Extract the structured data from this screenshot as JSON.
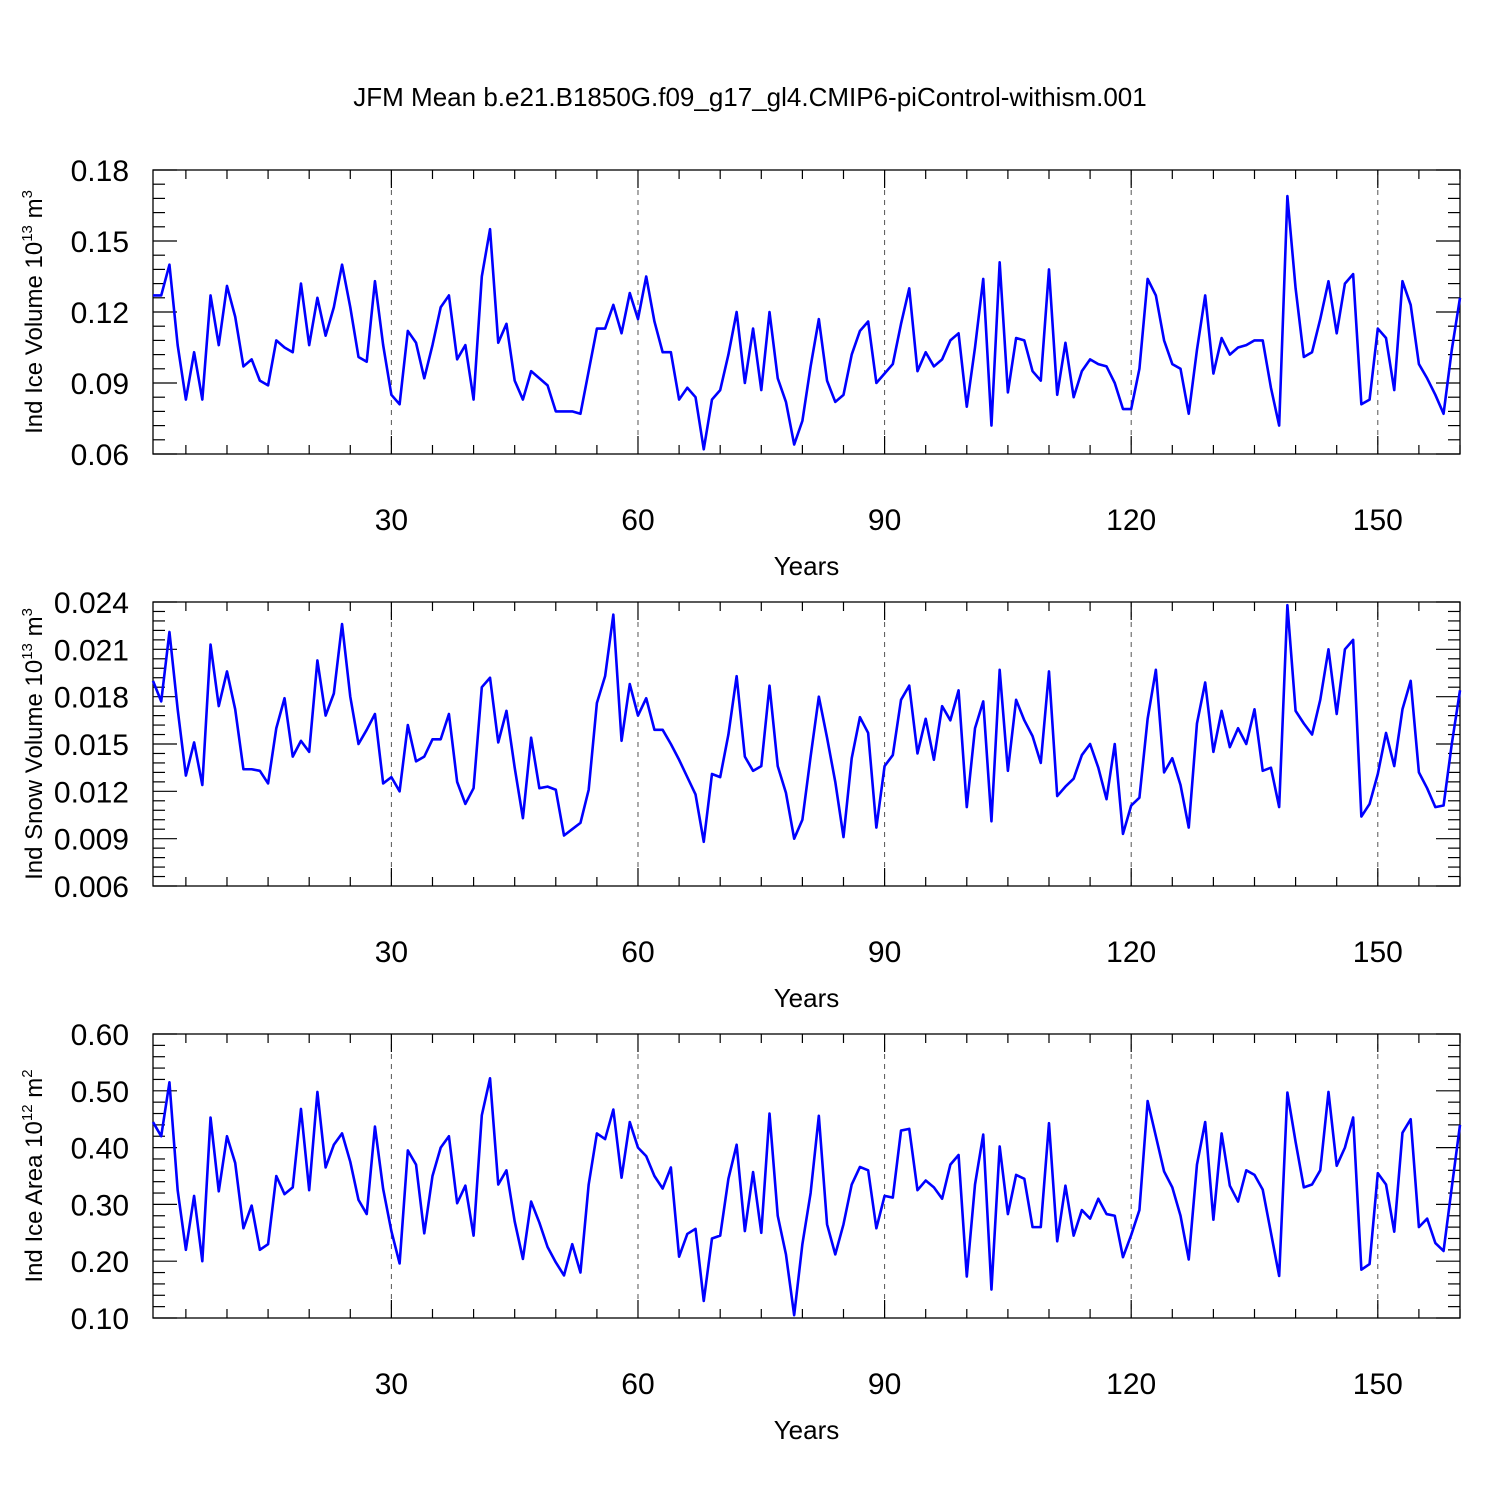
{
  "chart_data": {
    "type": "line",
    "title": "JFM Mean b.e21.B1850G.f09_g17_gl4.CMIP6-piControl-withism.001",
    "series_color": "#0000ff",
    "panels": [
      {
        "id": "ice-volume",
        "ylabel_prefix": "Ind Ice Volume 10",
        "ylabel_exp": "13",
        "ylabel_unit": " m",
        "ylabel_unit_exp": "3",
        "xlabel": "Years",
        "xlim": [
          1,
          160
        ],
        "ylim": [
          0.06,
          0.18
        ],
        "xticks": [
          "30",
          "60",
          "90",
          "120",
          "150"
        ],
        "yticks": [
          "0.06",
          "0.09",
          "0.12",
          "0.15",
          "0.18"
        ],
        "x_start": 1,
        "values": [
          0.127,
          0.127,
          0.14,
          0.106,
          0.083,
          0.103,
          0.083,
          0.127,
          0.106,
          0.131,
          0.118,
          0.097,
          0.1,
          0.091,
          0.089,
          0.108,
          0.105,
          0.103,
          0.132,
          0.106,
          0.126,
          0.11,
          0.122,
          0.14,
          0.122,
          0.101,
          0.099,
          0.133,
          0.106,
          0.085,
          0.081,
          0.112,
          0.107,
          0.092,
          0.106,
          0.122,
          0.127,
          0.1,
          0.106,
          0.083,
          0.135,
          0.155,
          0.107,
          0.115,
          0.091,
          0.083,
          0.095,
          0.092,
          0.089,
          0.078,
          0.078,
          0.078,
          0.077,
          0.095,
          0.113,
          0.113,
          0.123,
          0.111,
          0.128,
          0.117,
          0.135,
          0.116,
          0.103,
          0.103,
          0.083,
          0.088,
          0.084,
          0.062,
          0.083,
          0.087,
          0.102,
          0.12,
          0.09,
          0.113,
          0.087,
          0.12,
          0.092,
          0.082,
          0.064,
          0.074,
          0.097,
          0.117,
          0.091,
          0.082,
          0.085,
          0.102,
          0.112,
          0.116,
          0.09,
          0.094,
          0.098,
          0.115,
          0.13,
          0.095,
          0.103,
          0.097,
          0.1,
          0.108,
          0.111,
          0.08,
          0.105,
          0.134,
          0.072,
          0.141,
          0.086,
          0.109,
          0.108,
          0.095,
          0.091,
          0.138,
          0.085,
          0.107,
          0.084,
          0.095,
          0.1,
          0.098,
          0.097,
          0.09,
          0.079,
          0.079,
          0.096,
          0.134,
          0.127,
          0.108,
          0.098,
          0.096,
          0.077,
          0.104,
          0.127,
          0.094,
          0.109,
          0.102,
          0.105,
          0.106,
          0.108,
          0.108,
          0.088,
          0.072,
          0.169,
          0.13,
          0.101,
          0.103,
          0.117,
          0.133,
          0.111,
          0.132,
          0.136,
          0.081,
          0.083,
          0.113,
          0.109,
          0.087,
          0.133,
          0.123,
          0.098,
          0.092,
          0.085,
          0.077,
          0.104,
          0.126
        ]
      },
      {
        "id": "snow-volume",
        "ylabel_prefix": "Ind Snow Volume 10",
        "ylabel_exp": "13",
        "ylabel_unit": " m",
        "ylabel_unit_exp": "3",
        "xlabel": "Years",
        "xlim": [
          1,
          160
        ],
        "ylim": [
          0.006,
          0.024
        ],
        "xticks": [
          "30",
          "60",
          "90",
          "120",
          "150"
        ],
        "yticks": [
          "0.006",
          "0.009",
          "0.012",
          "0.015",
          "0.018",
          "0.021",
          "0.024"
        ],
        "x_start": 1,
        "values": [
          0.019,
          0.0177,
          0.0221,
          0.0172,
          0.013,
          0.0151,
          0.0124,
          0.0213,
          0.0174,
          0.0196,
          0.0172,
          0.0134,
          0.0134,
          0.0133,
          0.0125,
          0.016,
          0.0179,
          0.0142,
          0.0152,
          0.0145,
          0.0203,
          0.0168,
          0.0182,
          0.0226,
          0.018,
          0.015,
          0.0159,
          0.0169,
          0.0125,
          0.0129,
          0.012,
          0.0162,
          0.0139,
          0.0142,
          0.0153,
          0.0153,
          0.0169,
          0.0126,
          0.0112,
          0.0122,
          0.0186,
          0.0192,
          0.0151,
          0.0171,
          0.0135,
          0.0103,
          0.0154,
          0.0122,
          0.0123,
          0.0121,
          0.0092,
          0.0096,
          0.01,
          0.0121,
          0.0176,
          0.0193,
          0.0232,
          0.0152,
          0.0188,
          0.0168,
          0.0179,
          0.0159,
          0.0159,
          0.015,
          0.014,
          0.0129,
          0.0118,
          0.0088,
          0.0131,
          0.0129,
          0.0156,
          0.0193,
          0.0142,
          0.0133,
          0.0136,
          0.0187,
          0.0136,
          0.0119,
          0.009,
          0.0102,
          0.0142,
          0.018,
          0.0154,
          0.0126,
          0.0091,
          0.0141,
          0.0167,
          0.0157,
          0.0097,
          0.0136,
          0.0143,
          0.0178,
          0.0187,
          0.0144,
          0.0166,
          0.014,
          0.0174,
          0.0165,
          0.0184,
          0.011,
          0.016,
          0.0177,
          0.0101,
          0.0197,
          0.0133,
          0.0178,
          0.0165,
          0.0155,
          0.0138,
          0.0196,
          0.0117,
          0.0123,
          0.0128,
          0.0143,
          0.015,
          0.0135,
          0.0115,
          0.015,
          0.0093,
          0.0111,
          0.0116,
          0.0166,
          0.0197,
          0.0132,
          0.0141,
          0.0124,
          0.0097,
          0.0163,
          0.0189,
          0.0145,
          0.0171,
          0.0148,
          0.016,
          0.015,
          0.0172,
          0.0133,
          0.0135,
          0.011,
          0.0238,
          0.0171,
          0.0163,
          0.0156,
          0.0178,
          0.021,
          0.0169,
          0.021,
          0.0216,
          0.0104,
          0.0112,
          0.0131,
          0.0157,
          0.0136,
          0.0172,
          0.019,
          0.0132,
          0.0122,
          0.011,
          0.0111,
          0.015,
          0.0184
        ]
      },
      {
        "id": "ice-area",
        "ylabel_prefix": "Ind Ice Area 10",
        "ylabel_exp": "12",
        "ylabel_unit": " m",
        "ylabel_unit_exp": "2",
        "xlabel": "Years",
        "xlim": [
          1,
          160
        ],
        "ylim": [
          0.1,
          0.6
        ],
        "xticks": [
          "30",
          "60",
          "90",
          "120",
          "150"
        ],
        "yticks": [
          "0.10",
          "0.20",
          "0.30",
          "0.40",
          "0.50",
          "0.60"
        ],
        "x_start": 1,
        "values": [
          0.445,
          0.42,
          0.515,
          0.325,
          0.22,
          0.315,
          0.2,
          0.453,
          0.323,
          0.42,
          0.373,
          0.258,
          0.298,
          0.22,
          0.23,
          0.35,
          0.318,
          0.33,
          0.468,
          0.325,
          0.498,
          0.365,
          0.405,
          0.425,
          0.375,
          0.308,
          0.283,
          0.437,
          0.327,
          0.253,
          0.196,
          0.395,
          0.37,
          0.249,
          0.35,
          0.4,
          0.42,
          0.302,
          0.333,
          0.245,
          0.457,
          0.522,
          0.335,
          0.36,
          0.27,
          0.204,
          0.305,
          0.268,
          0.225,
          0.198,
          0.175,
          0.23,
          0.18,
          0.335,
          0.425,
          0.415,
          0.467,
          0.347,
          0.445,
          0.4,
          0.385,
          0.35,
          0.328,
          0.365,
          0.208,
          0.248,
          0.257,
          0.13,
          0.24,
          0.245,
          0.345,
          0.405,
          0.253,
          0.357,
          0.25,
          0.46,
          0.28,
          0.212,
          0.105,
          0.23,
          0.32,
          0.456,
          0.265,
          0.212,
          0.265,
          0.335,
          0.366,
          0.36,
          0.258,
          0.315,
          0.312,
          0.43,
          0.433,
          0.325,
          0.342,
          0.33,
          0.31,
          0.37,
          0.387,
          0.173,
          0.335,
          0.423,
          0.15,
          0.402,
          0.283,
          0.352,
          0.345,
          0.26,
          0.26,
          0.443,
          0.235,
          0.333,
          0.245,
          0.29,
          0.275,
          0.31,
          0.283,
          0.28,
          0.207,
          0.246,
          0.29,
          0.482,
          0.42,
          0.358,
          0.33,
          0.28,
          0.203,
          0.37,
          0.445,
          0.273,
          0.425,
          0.333,
          0.305,
          0.36,
          0.352,
          0.326,
          0.25,
          0.174,
          0.497,
          0.41,
          0.33,
          0.335,
          0.36,
          0.498,
          0.368,
          0.4,
          0.453,
          0.185,
          0.195,
          0.355,
          0.335,
          0.252,
          0.426,
          0.45,
          0.26,
          0.275,
          0.232,
          0.218,
          0.33,
          0.44
        ]
      }
    ]
  }
}
